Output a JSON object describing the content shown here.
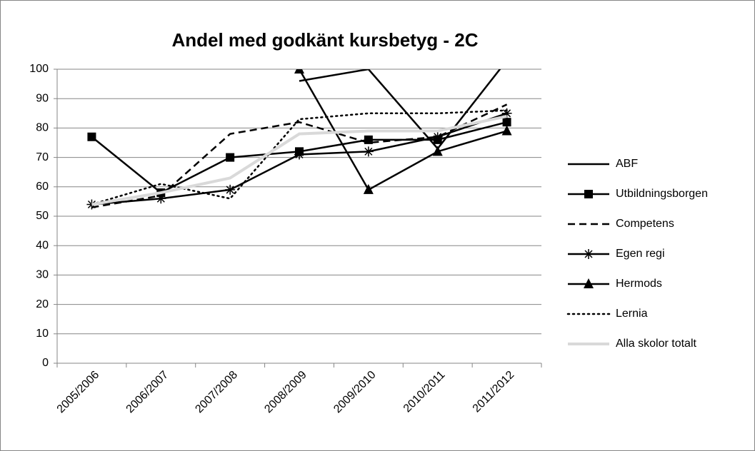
{
  "chart_data": {
    "type": "line",
    "title": "Andel med godkänt kursbetyg - 2C",
    "categories": [
      "2005/2006",
      "2006/2007",
      "2007/2008",
      "2008/2009",
      "2009/2010",
      "2010/2011",
      "2011/2012"
    ],
    "ylim": [
      0,
      100
    ],
    "yticks": [
      0,
      10,
      20,
      30,
      40,
      50,
      60,
      70,
      80,
      90,
      100
    ],
    "grid": true,
    "legend": "right",
    "series": [
      {
        "name": "ABF",
        "color": "#000000",
        "dash": "solid",
        "marker": "none",
        "values": [
          null,
          null,
          null,
          96,
          100,
          73,
          103
        ]
      },
      {
        "name": "Utbildningsborgen",
        "color": "#000000",
        "dash": "solid",
        "marker": "square",
        "values": [
          77,
          58,
          70,
          72,
          76,
          76,
          82
        ]
      },
      {
        "name": "Competens",
        "color": "#000000",
        "dash": "dashed",
        "marker": "none",
        "values": [
          53,
          57,
          78,
          82,
          75,
          77,
          88
        ]
      },
      {
        "name": "Egen regi",
        "color": "#000000",
        "dash": "solid",
        "marker": "star",
        "values": [
          54,
          56,
          59,
          71,
          72,
          77,
          85
        ]
      },
      {
        "name": "Hermods",
        "color": "#000000",
        "dash": "solid",
        "marker": "triangle",
        "values": [
          null,
          null,
          null,
          100,
          59,
          72,
          79
        ]
      },
      {
        "name": "Lernia",
        "color": "#000000",
        "dash": "dotted",
        "marker": "none",
        "values": [
          54,
          61,
          56,
          83,
          85,
          85,
          86
        ]
      },
      {
        "name": "Alla skolor totalt",
        "color": "#d9d9d9",
        "dash": "solid",
        "marker": "none",
        "values": [
          54,
          58,
          63,
          78,
          79,
          79,
          84
        ]
      }
    ]
  }
}
